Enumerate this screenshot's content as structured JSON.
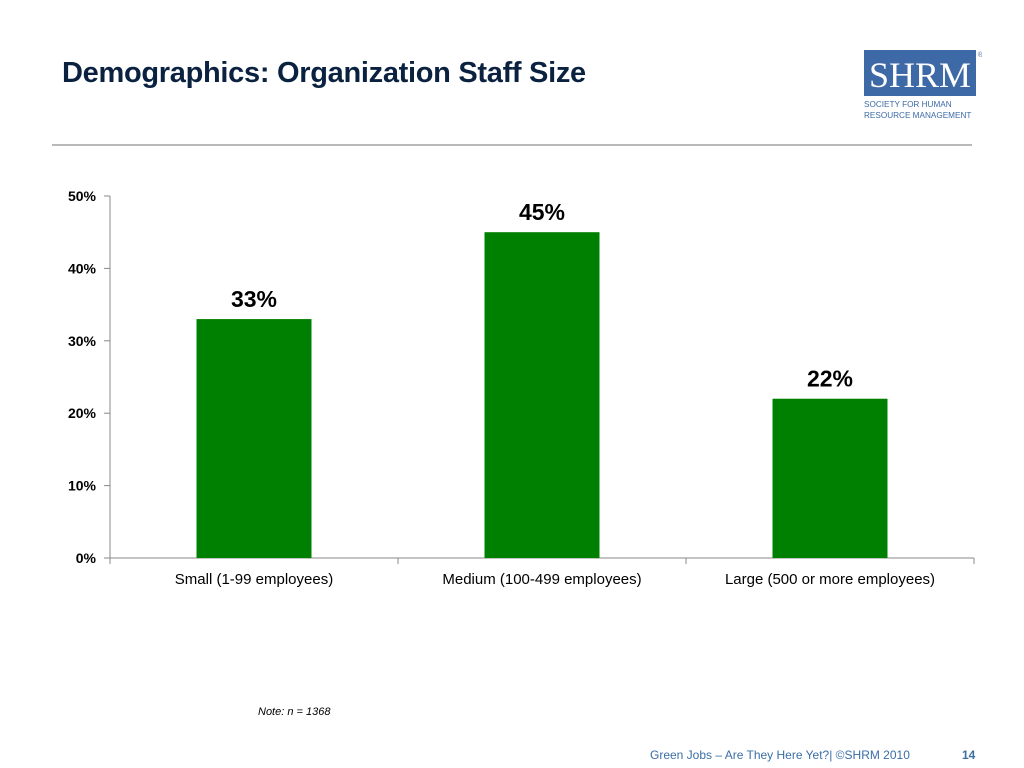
{
  "slide": {
    "title": "Demographics: Organization Staff Size",
    "note": "Note: n = 1368",
    "footer": "Green Jobs – Are They Here Yet?| ©SHRM 2010",
    "page_number": "14"
  },
  "logo": {
    "wordmark": "SHRM",
    "registered": "®",
    "line1": "SOCIETY FOR HUMAN",
    "line2": "RESOURCE MANAGEMENT",
    "color": "#3d6aa6"
  },
  "chart_data": {
    "type": "bar",
    "title": "",
    "xlabel": "",
    "ylabel": "",
    "categories": [
      "Small (1-99 employees)",
      "Medium (100-499 employees)",
      "Large (500 or more employees)"
    ],
    "values": [
      33,
      45,
      22
    ],
    "data_labels": [
      "33%",
      "45%",
      "22%"
    ],
    "ylim": [
      0,
      50
    ],
    "yticks": [
      0,
      10,
      20,
      30,
      40,
      50
    ],
    "ytick_labels": [
      "0%",
      "10%",
      "20%",
      "30%",
      "40%",
      "50%"
    ],
    "bar_color": "#008000",
    "grid": false,
    "legend": "none"
  }
}
